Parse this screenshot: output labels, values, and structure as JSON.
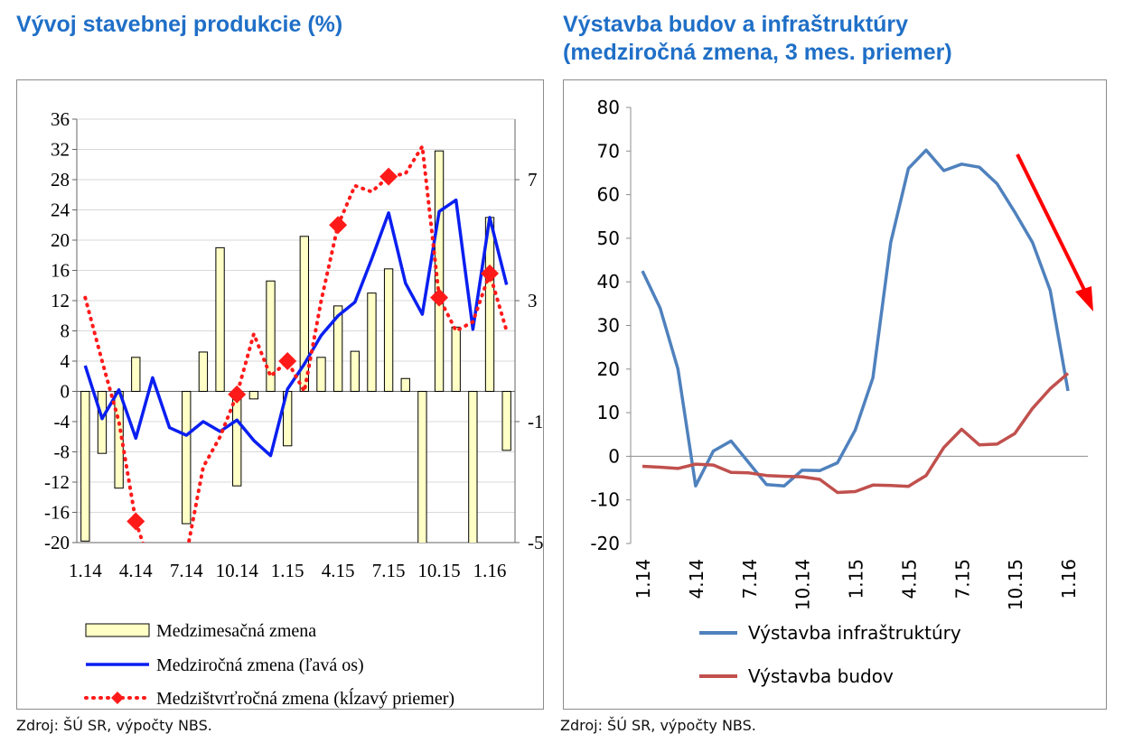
{
  "titles": {
    "left": "Vývoj stavebnej produkcie (%)",
    "right_line1": "Výstavba budov a infraštruktúry",
    "right_line2": "(medziročná zmena, 3 mes. priemer)"
  },
  "sources": {
    "left": "Zdroj: ŠÚ SR, výpočty NBS.",
    "right": "Zdroj: ŠÚ SR, výpočty NBS."
  },
  "chart_data": [
    {
      "type": "bar",
      "title": "Vývoj stavebnej produkcie (%)",
      "x_tick_labels": [
        "1.14",
        "4.14",
        "7.14",
        "10.14",
        "1.15",
        "4.15",
        "7.15",
        "10.15",
        "1.16"
      ],
      "y_left": {
        "min": -20,
        "max": 36,
        "ticks": [
          "36",
          "32",
          "28",
          "24",
          "20",
          "16",
          "12",
          "8",
          "4",
          "0",
          "-4",
          "-8",
          "-12",
          "-16",
          "-20"
        ]
      },
      "y_right": {
        "min": -5,
        "max": 9,
        "ticks": [
          "7",
          "3",
          "-1",
          "-5"
        ]
      },
      "grid": true,
      "legend_position": "bottom",
      "legend": [
        "Medzimesačná zmena",
        "Medziročná zmena (ľavá os)",
        "Medzištvrťročná zmena (kĺzavý priemer)"
      ],
      "bars": {
        "name": "Medzimesačná zmena",
        "axis": "left",
        "values": [
          -19.8,
          -8.2,
          -12.8,
          4.5,
          0,
          0,
          -17.5,
          5.2,
          19,
          -12.5,
          -1,
          14.6,
          -7.2,
          20.5,
          4.5,
          11.3,
          5.3,
          13,
          16.2,
          1.7,
          -21,
          31.8,
          8.5,
          -21,
          23,
          -7.8
        ]
      },
      "line": {
        "name": "Medziročná zmena (ľavá os)",
        "axis": "left",
        "color": "#0a1ff0",
        "values": [
          3.4,
          -3.6,
          0.2,
          -6.2,
          1.8,
          -4.8,
          -5.8,
          -4.0,
          -5.3,
          -3.8,
          -6.5,
          -8.5,
          0.3,
          3.6,
          7.4,
          10.0,
          11.8,
          17.5,
          23.6,
          14.3,
          10.2,
          23.8,
          25.3,
          8.2,
          23.0,
          14.1
        ]
      },
      "dotted": {
        "name": "Medzištvrťročná zmena (kĺzavý priemer)",
        "axis": "right",
        "color": "#ff1a1a",
        "values": [
          3.1,
          1.0,
          -1.0,
          -4.3,
          -6.0,
          -6.0,
          -5.4,
          -2.5,
          -1.5,
          -0.1,
          1.9,
          0.5,
          1.0,
          0.0,
          3.0,
          5.5,
          6.8,
          6.6,
          7.1,
          7.2,
          8.1,
          3.1,
          2.0,
          2.3,
          3.9,
          2.0
        ]
      },
      "dotted_markers": [
        3,
        6,
        9,
        12,
        15,
        18,
        21,
        24
      ]
    },
    {
      "type": "line",
      "title": "Výstavba budov a infraštruktúry (medziročná zmena, 3 mes. priemer)",
      "x_tick_labels": [
        "1.14",
        "4.14",
        "7.14",
        "10.14",
        "1.15",
        "4.15",
        "7.15",
        "10.15",
        "1.16"
      ],
      "y": {
        "min": -20,
        "max": 80,
        "ticks": [
          "80",
          "70",
          "60",
          "50",
          "40",
          "30",
          "20",
          "10",
          "0",
          "-10",
          "-20"
        ]
      },
      "grid": false,
      "legend_position": "bottom",
      "series": [
        {
          "name": "Výstavba infraštruktúry",
          "color": "#4f81bd",
          "values": [
            42.5,
            34.0,
            20.0,
            -6.8,
            1.2,
            3.5,
            -1.5,
            -6.5,
            -6.8,
            -3.2,
            -3.3,
            -1.5,
            6.0,
            18.0,
            49.0,
            66.0,
            70.2,
            65.5,
            67.0,
            66.3,
            62.5,
            56.0,
            49.0,
            38.0,
            15.0
          ]
        },
        {
          "name": "Výstavba budov",
          "color": "#c0504d",
          "values": [
            -2.3,
            -2.5,
            -2.8,
            -1.8,
            -2.0,
            -3.7,
            -3.8,
            -4.4,
            -4.6,
            -4.7,
            -5.3,
            -8.3,
            -8.1,
            -6.6,
            -6.7,
            -6.9,
            -4.4,
            2.0,
            6.2,
            2.6,
            2.8,
            5.2,
            11.0,
            15.5,
            19.0
          ]
        }
      ],
      "annotation": {
        "type": "arrow",
        "color": "#ff0000",
        "direction": "down-right"
      }
    }
  ]
}
